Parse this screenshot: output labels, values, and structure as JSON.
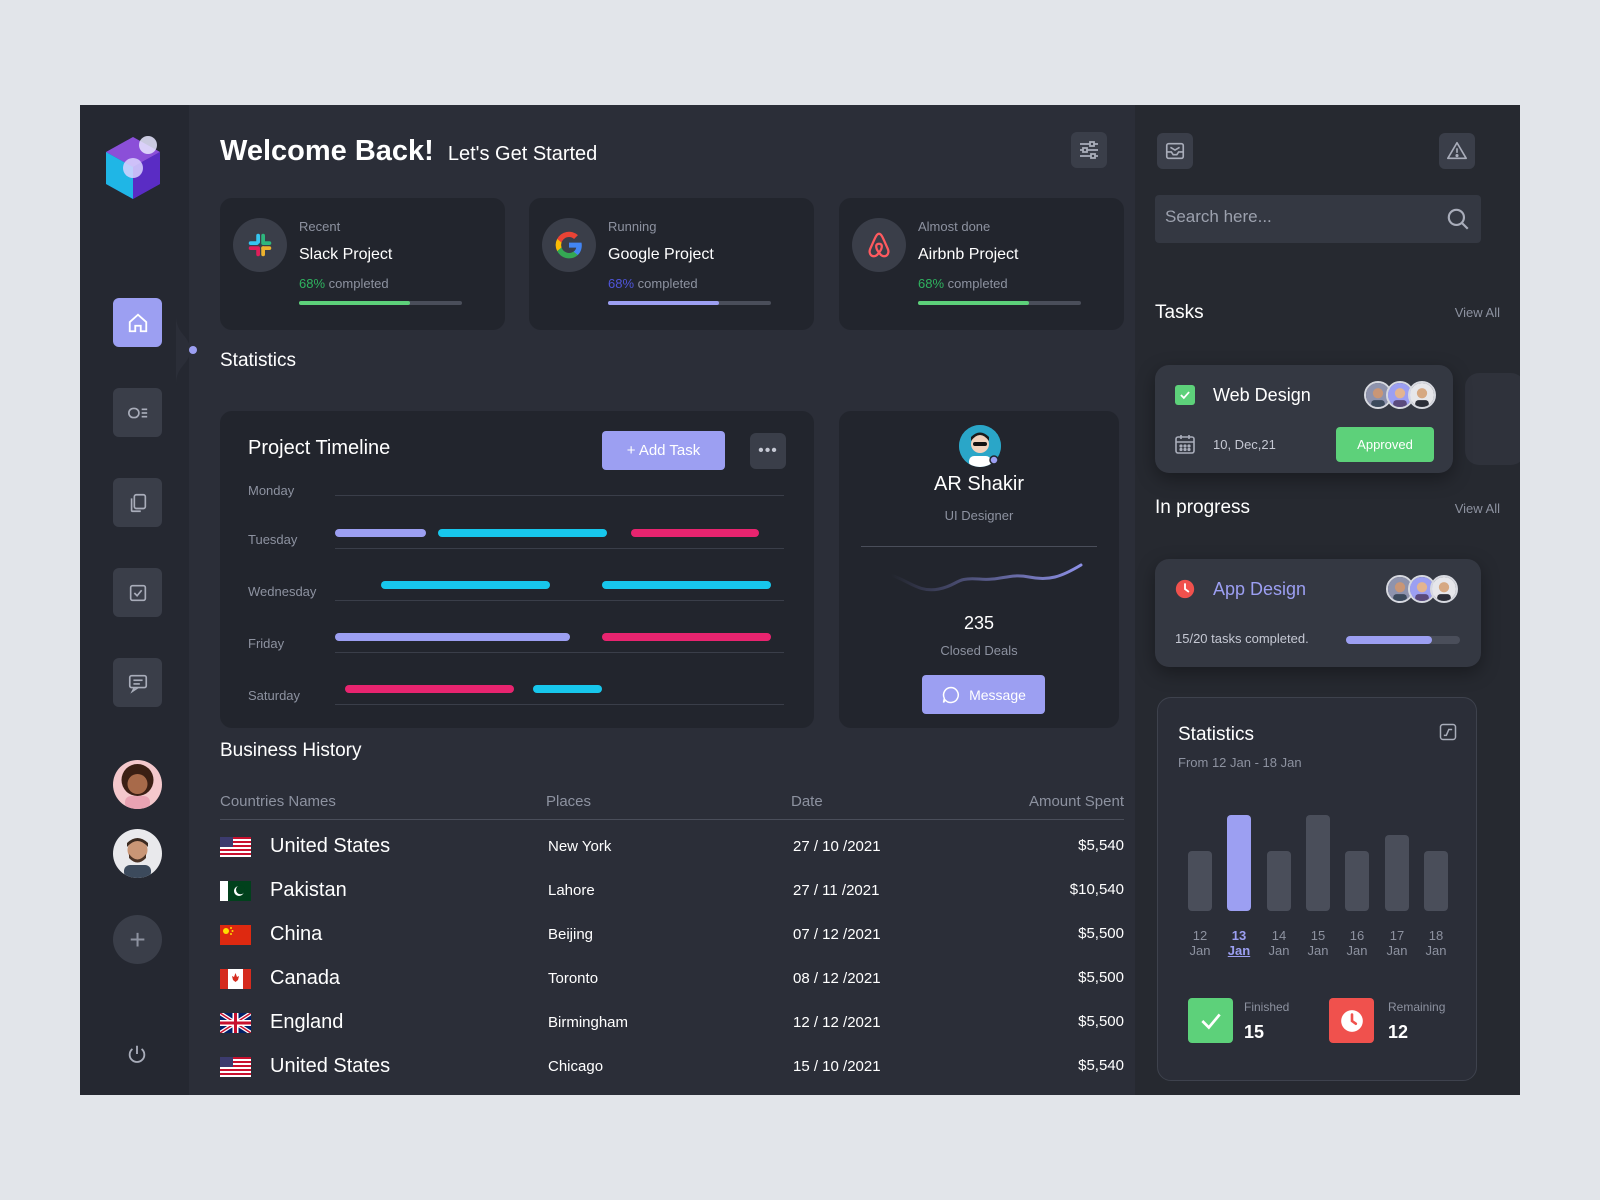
{
  "header": {
    "title": "Welcome Back!",
    "subtitle": "Let's Get Started"
  },
  "projects": [
    {
      "status": "Recent",
      "name": "Slack Project",
      "percent": "68%",
      "completed_label": "completed",
      "progress": 0.68,
      "bar_color": "#5dd17a",
      "icon": "slack-icon"
    },
    {
      "status": "Running",
      "name": "Google Project",
      "percent": "68%",
      "completed_label": "completed",
      "progress": 0.68,
      "bar_color": "#9c9ff2",
      "icon": "google-icon"
    },
    {
      "status": "Almost done",
      "name": "Airbnb Project",
      "percent": "68%",
      "completed_label": "completed",
      "progress": 0.68,
      "bar_color": "#5dd17a",
      "icon": "airbnb-icon"
    }
  ],
  "statistics_heading": "Statistics",
  "timeline": {
    "title": "Project Timeline",
    "add_task_label": "+ Add Task",
    "more_label": "•••",
    "days": [
      "Monday",
      "Tuesday",
      "Wednesday",
      "Friday",
      "Saturday"
    ]
  },
  "profile": {
    "name": "AR Shakir",
    "role": "UI Designer",
    "deals_count": "235",
    "deals_label": "Closed Deals",
    "message_label": "Message"
  },
  "business_history": {
    "title": "Business History",
    "columns": [
      "Countries Names",
      "Places",
      "Date",
      "Amount Spent"
    ],
    "rows": [
      {
        "country": "United States",
        "place": "New York",
        "date": "27 / 10 /2021",
        "amount": "$5,540",
        "flag": "us"
      },
      {
        "country": "Pakistan",
        "place": "Lahore",
        "date": "27 / 11 /2021",
        "amount": "$10,540",
        "flag": "pk"
      },
      {
        "country": "China",
        "place": "Beijing",
        "date": "07 / 12 /2021",
        "amount": "$5,500",
        "flag": "cn"
      },
      {
        "country": "Canada",
        "place": "Toronto",
        "date": "08 / 12 /2021",
        "amount": "$5,500",
        "flag": "ca"
      },
      {
        "country": "England",
        "place": "Birmingham",
        "date": "12 / 12 /2021",
        "amount": "$5,500",
        "flag": "gb"
      },
      {
        "country": "United States",
        "place": "Chicago",
        "date": "15 / 10 /2021",
        "amount": "$5,540",
        "flag": "us"
      }
    ]
  },
  "search": {
    "placeholder": "Search here..."
  },
  "tasks": {
    "title": "Tasks",
    "view_all": "View All",
    "card": {
      "name": "Web Design",
      "date": "10, Dec,21",
      "status": "Approved"
    }
  },
  "in_progress": {
    "title": "In progress",
    "view_all": "View All",
    "card": {
      "name": "App Design",
      "text": "15/20 tasks completed.",
      "progress": 0.75
    }
  },
  "stats_panel": {
    "title": "Statistics",
    "range": "From 12 Jan - 18 Jan",
    "days": [
      {
        "day": "12",
        "month": "Jan",
        "value": 0.62,
        "active": false
      },
      {
        "day": "13",
        "month": "Jan",
        "value": 1.0,
        "active": true
      },
      {
        "day": "14",
        "month": "Jan",
        "value": 0.62,
        "active": false
      },
      {
        "day": "15",
        "month": "Jan",
        "value": 1.0,
        "active": false
      },
      {
        "day": "16",
        "month": "Jan",
        "value": 0.62,
        "active": false
      },
      {
        "day": "17",
        "month": "Jan",
        "value": 0.79,
        "active": false
      },
      {
        "day": "18",
        "month": "Jan",
        "value": 0.62,
        "active": false
      }
    ],
    "finished_label": "Finished",
    "finished_value": "15",
    "remaining_label": "Remaining",
    "remaining_value": "12"
  },
  "colors": {
    "accent": "#9c9ff2",
    "cyan": "#17c7ec",
    "pink": "#e8246f",
    "green": "#5dd17a",
    "red": "#f0514d"
  }
}
